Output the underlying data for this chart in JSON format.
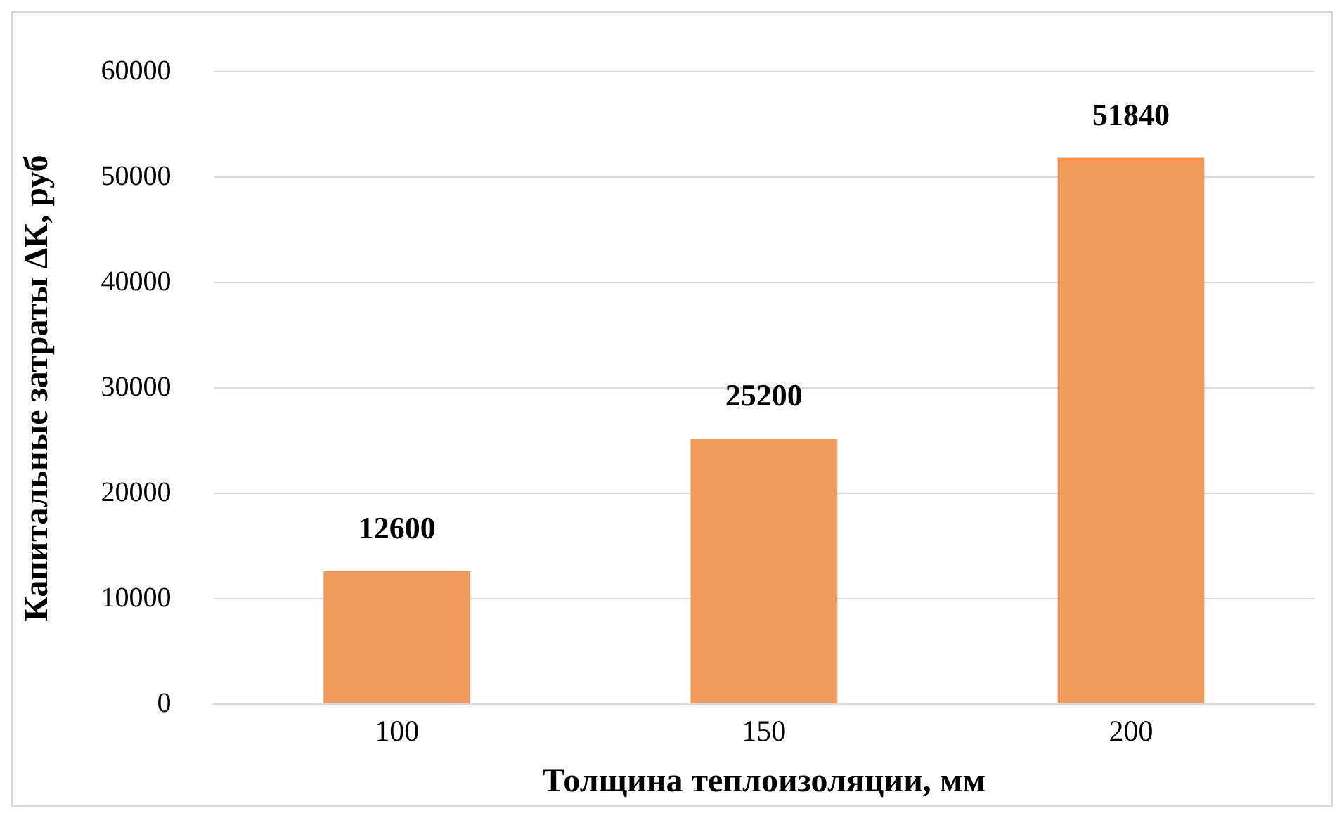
{
  "chart_data": {
    "type": "bar",
    "xlabel": "Толщина теплоизоляции, мм",
    "ylabel": "Капитальные затраты ΔК, руб",
    "categories": [
      "100",
      "150",
      "200"
    ],
    "values": [
      12600,
      25200,
      51840
    ],
    "color": "#f09a5c",
    "ylim": [
      0,
      60000
    ],
    "yticks": [
      0,
      10000,
      20000,
      30000,
      40000,
      50000,
      60000
    ],
    "grid": "y",
    "data_labels": true
  }
}
